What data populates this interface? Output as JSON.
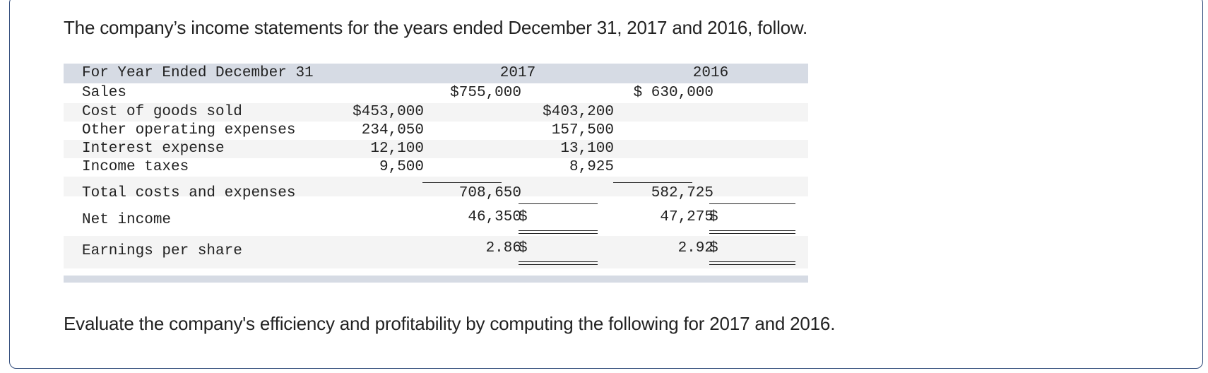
{
  "intro_text": "The company’s income statements for the years ended December 31, 2017 and 2016, follow.",
  "outro_text": "Evaluate the company's efficiency and profitability by computing the following for 2017 and 2016.",
  "statement": {
    "header": {
      "label": "For Year Ended December 31",
      "year1": "2017",
      "year2": "2016"
    },
    "sales": {
      "label": "Sales",
      "y1_total": "$755,000",
      "y2_total": "$ 630,000"
    },
    "cogs": {
      "label": "Cost of goods sold",
      "y1_detail": "$453,000",
      "y2_detail": "$403,200"
    },
    "opex": {
      "label": "Other operating expenses",
      "y1_detail": "234,050",
      "y2_detail": "157,500"
    },
    "interest": {
      "label": "Interest expense",
      "y1_detail": "12,100",
      "y2_detail": "13,100"
    },
    "taxes": {
      "label": "Income taxes",
      "y1_detail": "9,500",
      "y2_detail": "8,925"
    },
    "total_costs": {
      "label": "Total costs and expenses",
      "y1_total": "708,650",
      "y2_total": "582,725"
    },
    "net_income": {
      "label": "Net income",
      "y1_sign": "$",
      "y1_value": "46,350",
      "y2_sign": "$",
      "y2_value": "47,275"
    },
    "eps": {
      "label": "Earnings per share",
      "y1_sign": "$",
      "y1_value": "2.86",
      "y2_sign": "$",
      "y2_value": "2.92"
    }
  }
}
